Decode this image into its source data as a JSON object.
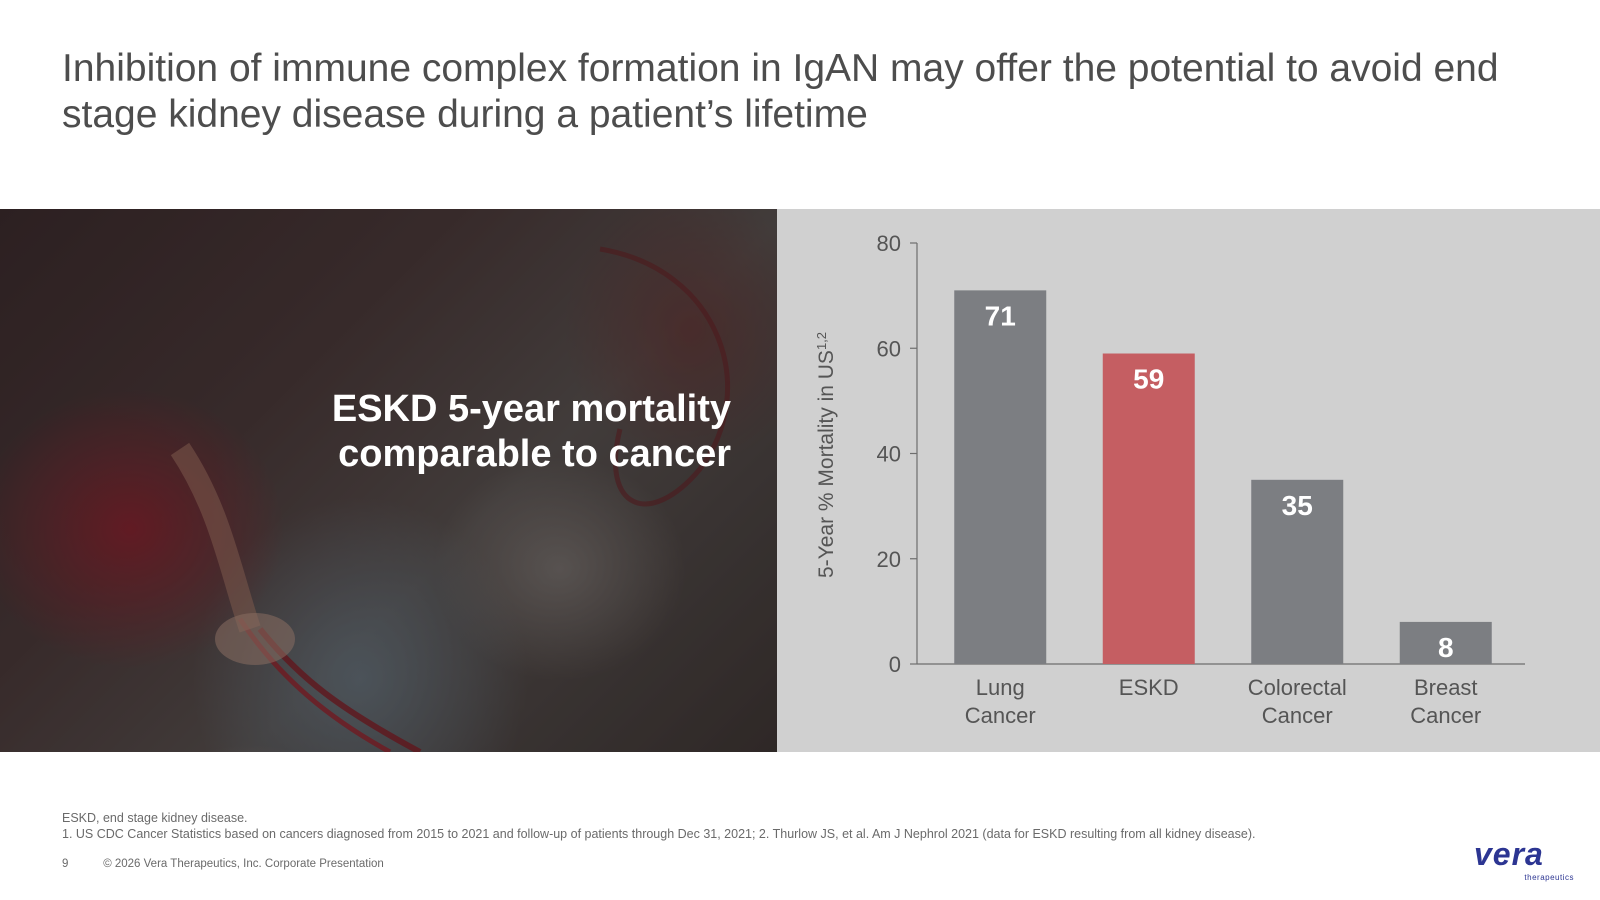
{
  "slide": {
    "title": "Inhibition of immune complex formation in IgAN may offer the potential to avoid end stage kidney disease during a patient’s lifetime",
    "photo_caption_line1": "ESKD 5-year mortality",
    "photo_caption_line2": "comparable to cancer"
  },
  "chart_data": {
    "type": "bar",
    "categories": [
      [
        "Lung",
        "Cancer"
      ],
      [
        "ESKD"
      ],
      [
        "Colorectal",
        "Cancer"
      ],
      [
        "Breast",
        "Cancer"
      ]
    ],
    "values": [
      71,
      59,
      35,
      8
    ],
    "data_labels": [
      "71",
      "59",
      "35",
      "8"
    ],
    "bar_colors": [
      "#7c7e82",
      "#c55e62",
      "#7c7e82",
      "#7c7e82"
    ],
    "ylabel": "5-Year % Mortality in US",
    "ylabel_superscript": "1,2",
    "ylim": [
      0,
      80
    ],
    "yticks": [
      0,
      20,
      40,
      60,
      80
    ],
    "grid": false,
    "legend": "none"
  },
  "footnotes": {
    "abbreviation": "ESKD, end stage kidney disease.",
    "references": "1. US CDC Cancer Statistics based on cancers diagnosed from 2015 to 2021 and follow-up of patients through Dec 31, 2021; 2. Thurlow JS, et al. Am J Nephrol 2021 (data for ESKD resulting from all kidney disease)."
  },
  "footer": {
    "page_number": "9",
    "copyright": "© 2026 Vera Therapeutics, Inc. Corporate Presentation"
  },
  "logo": {
    "wordmark": "vera",
    "subtitle": "therapeutics",
    "color": "#2c3592"
  },
  "colors": {
    "panel_bg": "#d0d0d0",
    "bar_gray": "#7c7e82",
    "bar_highlight": "#c55e62"
  }
}
